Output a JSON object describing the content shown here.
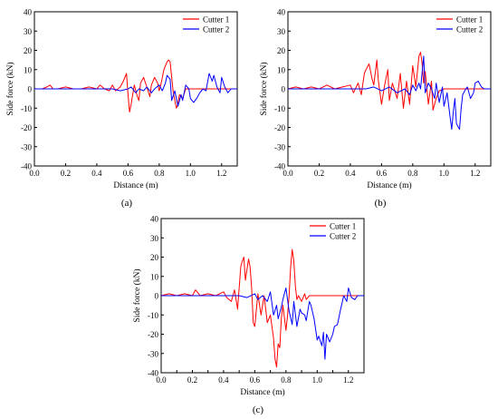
{
  "figure": {
    "panel_labels": [
      "(a)",
      "(b)",
      "(c)"
    ]
  },
  "colors": {
    "cutter1": "#ff0000",
    "cutter2": "#0000ff",
    "axis": "#000000"
  },
  "chart_data": [
    {
      "type": "line",
      "panel": "(a)",
      "xlabel": "Distance (m)",
      "ylabel": "Side force (kN)",
      "xlim": [
        0.0,
        1.3
      ],
      "ylim": [
        -40,
        40
      ],
      "xticks": [
        "0.0",
        "0.2",
        "0.4",
        "0.6",
        "0.8",
        "1.0",
        "1.2"
      ],
      "yticks": [
        "-40",
        "-30",
        "-20",
        "-10",
        "0",
        "10",
        "20",
        "30",
        "40"
      ],
      "legend_position": "top-right",
      "grid": false,
      "series": [
        {
          "name": "Cutter 1",
          "color": "#ff0000",
          "x": [
            0,
            0.05,
            0.08,
            0.1,
            0.12,
            0.15,
            0.2,
            0.25,
            0.3,
            0.35,
            0.4,
            0.42,
            0.45,
            0.48,
            0.5,
            0.52,
            0.55,
            0.57,
            0.59,
            0.6,
            0.61,
            0.62,
            0.64,
            0.66,
            0.67,
            0.68,
            0.7,
            0.72,
            0.74,
            0.75,
            0.77,
            0.79,
            0.8,
            0.81,
            0.83,
            0.85,
            0.86,
            0.87,
            0.88,
            0.89,
            0.9,
            0.91,
            0.92,
            0.93,
            0.95,
            0.97,
            1.0,
            1.3
          ],
          "y": [
            0,
            0,
            1,
            2,
            0,
            0,
            1,
            0,
            0,
            1,
            0,
            2,
            0,
            -1,
            2,
            -1,
            1,
            4,
            8,
            -3,
            -12,
            -8,
            2,
            -4,
            -6,
            3,
            6,
            1,
            -4,
            2,
            6,
            3,
            -1,
            2,
            10,
            14,
            15,
            14,
            6,
            -2,
            -6,
            -10,
            -8,
            -3,
            -5,
            0,
            0,
            0
          ]
        },
        {
          "name": "Cutter 2",
          "color": "#0000ff",
          "x": [
            0,
            0.1,
            0.2,
            0.3,
            0.4,
            0.5,
            0.55,
            0.6,
            0.62,
            0.65,
            0.67,
            0.7,
            0.72,
            0.75,
            0.77,
            0.8,
            0.82,
            0.84,
            0.85,
            0.87,
            0.88,
            0.9,
            0.92,
            0.94,
            0.95,
            0.97,
            0.99,
            1.0,
            1.02,
            1.04,
            1.06,
            1.08,
            1.1,
            1.12,
            1.14,
            1.15,
            1.17,
            1.19,
            1.2,
            1.22,
            1.24,
            1.26,
            1.28,
            1.3
          ],
          "y": [
            0,
            0,
            0,
            0,
            0,
            0,
            -1,
            0,
            1,
            -2,
            0,
            -1,
            1,
            -2,
            0,
            2,
            -1,
            3,
            7,
            5,
            -6,
            -1,
            -9,
            -3,
            -6,
            2,
            0,
            -5,
            -7,
            -5,
            -2,
            0,
            -1,
            8,
            4,
            7,
            1,
            -2,
            6,
            1,
            -2,
            0,
            0,
            0
          ]
        }
      ]
    },
    {
      "type": "line",
      "panel": "(b)",
      "xlabel": "Distance (m)",
      "ylabel": "Side force (kN)",
      "xlim": [
        0.0,
        1.3
      ],
      "ylim": [
        -40,
        40
      ],
      "xticks": [
        "0.0",
        "0.2",
        "0.4",
        "0.6",
        "0.8",
        "1.0",
        "1.2"
      ],
      "yticks": [
        "-40",
        "-30",
        "-20",
        "-10",
        "0",
        "10",
        "20",
        "30",
        "40"
      ],
      "legend_position": "top-right",
      "grid": false,
      "series": [
        {
          "name": "Cutter 1",
          "color": "#ff0000",
          "x": [
            0,
            0.05,
            0.1,
            0.15,
            0.2,
            0.25,
            0.3,
            0.35,
            0.4,
            0.42,
            0.45,
            0.47,
            0.49,
            0.5,
            0.52,
            0.54,
            0.55,
            0.57,
            0.58,
            0.6,
            0.62,
            0.64,
            0.65,
            0.67,
            0.7,
            0.72,
            0.74,
            0.76,
            0.78,
            0.8,
            0.82,
            0.84,
            0.85,
            0.86,
            0.87,
            0.88,
            0.9,
            0.92,
            0.93,
            0.95,
            0.97,
            1.0,
            1.3
          ],
          "y": [
            0,
            1,
            0,
            1,
            0,
            2,
            0,
            1,
            2,
            -2,
            3,
            -3,
            8,
            10,
            13,
            5,
            2,
            15,
            4,
            -8,
            2,
            10,
            -6,
            3,
            -5,
            8,
            -10,
            4,
            -8,
            12,
            1,
            17,
            19,
            13,
            3,
            9,
            -8,
            4,
            -11,
            -5,
            -1,
            0,
            0
          ]
        },
        {
          "name": "Cutter 2",
          "color": "#0000ff",
          "x": [
            0,
            0.1,
            0.2,
            0.3,
            0.4,
            0.5,
            0.55,
            0.6,
            0.65,
            0.7,
            0.75,
            0.78,
            0.8,
            0.82,
            0.84,
            0.85,
            0.87,
            0.88,
            0.9,
            0.92,
            0.94,
            0.95,
            0.97,
            0.99,
            1.0,
            1.02,
            1.04,
            1.05,
            1.06,
            1.07,
            1.08,
            1.1,
            1.11,
            1.12,
            1.14,
            1.15,
            1.17,
            1.19,
            1.2,
            1.22,
            1.24,
            1.26,
            1.3
          ],
          "y": [
            0,
            0,
            0,
            0,
            0,
            0,
            1,
            -1,
            1,
            -2,
            0,
            -3,
            2,
            -1,
            3,
            0,
            17,
            -2,
            3,
            0,
            -5,
            3,
            -7,
            1,
            -9,
            -2,
            -15,
            -21,
            -12,
            -5,
            -18,
            -21,
            -10,
            -3,
            0,
            1,
            -5,
            -2,
            3,
            4,
            1,
            0,
            0
          ]
        }
      ]
    },
    {
      "type": "line",
      "panel": "(c)",
      "xlabel": "Distance (m)",
      "ylabel": "Side force (kN)",
      "xlim": [
        0.0,
        1.3
      ],
      "ylim": [
        -40,
        40
      ],
      "xticks": [
        "0.0",
        "0.1",
        "0.2",
        "0.3",
        "0.4",
        "0.5",
        "0.6",
        "0.7",
        "0.8",
        "0.9",
        "1.0",
        "1.1",
        "1.2"
      ],
      "yticks": [
        "-40",
        "-30",
        "-20",
        "-10",
        "0",
        "10",
        "20",
        "30",
        "40"
      ],
      "legend_position": "top-right",
      "grid": false,
      "series": [
        {
          "name": "Cutter 1",
          "color": "#ff0000",
          "x": [
            0,
            0.05,
            0.1,
            0.15,
            0.2,
            0.22,
            0.25,
            0.3,
            0.35,
            0.4,
            0.42,
            0.45,
            0.47,
            0.49,
            0.51,
            0.52,
            0.53,
            0.54,
            0.56,
            0.57,
            0.58,
            0.59,
            0.6,
            0.62,
            0.64,
            0.66,
            0.68,
            0.7,
            0.72,
            0.73,
            0.74,
            0.75,
            0.76,
            0.77,
            0.78,
            0.8,
            0.81,
            0.82,
            0.83,
            0.84,
            0.85,
            0.86,
            0.87,
            0.88,
            0.9,
            0.92,
            0.93,
            0.95,
            1.3
          ],
          "y": [
            0,
            1,
            0,
            1,
            0,
            3,
            0,
            1,
            0,
            2,
            -1,
            -3,
            3,
            -7,
            15,
            18,
            20,
            8,
            19,
            15,
            4,
            -14,
            -16,
            1,
            -10,
            0,
            -14,
            -10,
            -22,
            -33,
            -37,
            -25,
            -27,
            -12,
            -5,
            -18,
            -10,
            0,
            15,
            24,
            18,
            5,
            -2,
            0,
            -3,
            1,
            -2,
            0,
            0
          ]
        },
        {
          "name": "Cutter 2",
          "color": "#0000ff",
          "x": [
            0,
            0.1,
            0.2,
            0.3,
            0.4,
            0.5,
            0.55,
            0.6,
            0.62,
            0.65,
            0.68,
            0.7,
            0.72,
            0.74,
            0.75,
            0.77,
            0.78,
            0.8,
            0.82,
            0.84,
            0.85,
            0.87,
            0.89,
            0.9,
            0.92,
            0.93,
            0.95,
            0.96,
            0.98,
            1.0,
            1.01,
            1.03,
            1.04,
            1.05,
            1.06,
            1.08,
            1.1,
            1.11,
            1.13,
            1.15,
            1.17,
            1.19,
            1.2,
            1.22,
            1.24,
            1.26,
            1.3
          ],
          "y": [
            0,
            0,
            0,
            0,
            0,
            0,
            -1,
            1,
            -2,
            0,
            -3,
            2,
            -10,
            -5,
            -12,
            -6,
            -2,
            4,
            -8,
            -15,
            -3,
            -16,
            -7,
            -9,
            -10,
            -13,
            -3,
            -5,
            -12,
            -23,
            -21,
            -26,
            -19,
            -33,
            -20,
            -24,
            -20,
            -16,
            -15,
            -7,
            0,
            -3,
            4,
            -1,
            -2,
            0,
            0
          ]
        }
      ]
    }
  ]
}
